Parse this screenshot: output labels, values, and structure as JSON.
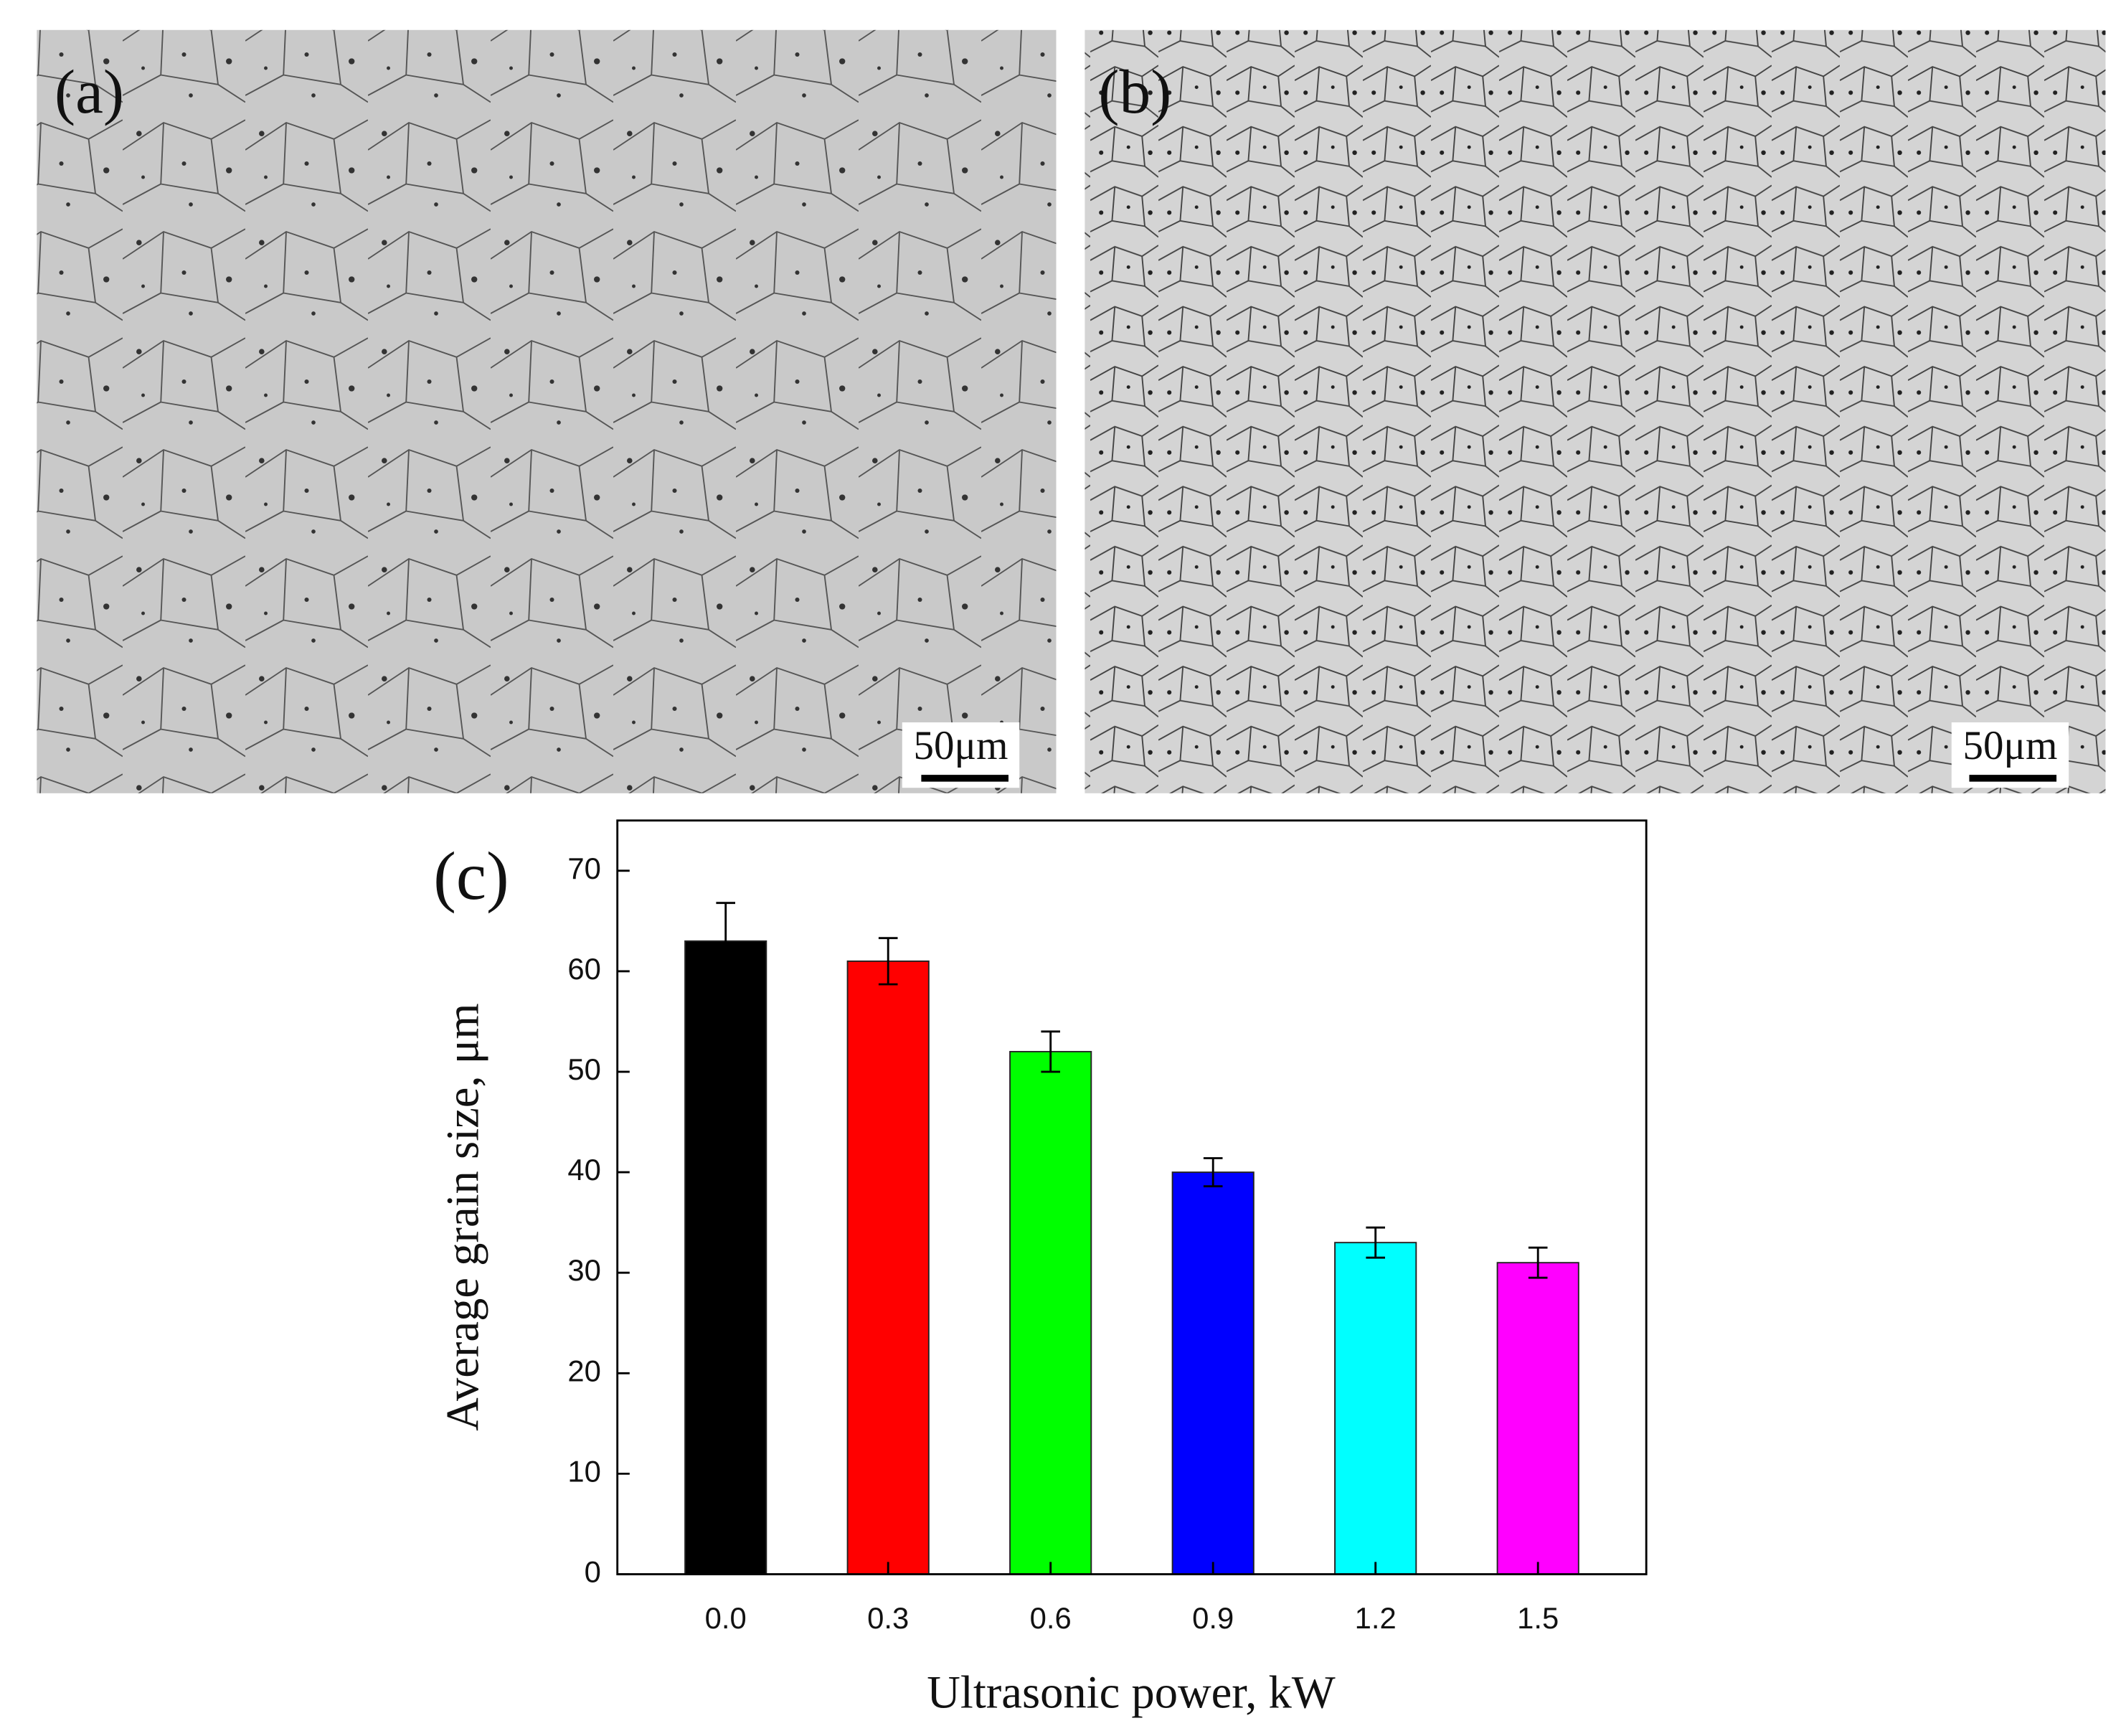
{
  "panels": [
    {
      "label": "(a)",
      "scale_bar": "50μm"
    },
    {
      "label": "(b)",
      "scale_bar": "50μm"
    }
  ],
  "chart_data": {
    "type": "bar",
    "label": "(c)",
    "x": [
      0,
      0.3,
      0.6,
      0.9,
      1.2,
      1.5
    ],
    "values": [
      63,
      61,
      52,
      40,
      33,
      31
    ],
    "errors": [
      3.8,
      2.3,
      2,
      1.4,
      1.5,
      1.5
    ],
    "colors": [
      "#000000",
      "#ff0000",
      "#00ff00",
      "#0000ff",
      "#00ffff",
      "#ff00ff"
    ],
    "xlabel": "Ultrasonic power, kW",
    "ylabel": "Average grain size, μm",
    "xlim": [
      -0.2,
      1.7
    ],
    "ylim": [
      0,
      75
    ],
    "xticks": [
      {
        "value": 0,
        "label": "0.0"
      },
      {
        "value": 0.3,
        "label": "0.3"
      },
      {
        "value": 0.6,
        "label": "0.6"
      },
      {
        "value": 0.9,
        "label": "0.9"
      },
      {
        "value": 1.2,
        "label": "1.2"
      },
      {
        "value": 1.5,
        "label": "1.5"
      }
    ],
    "yticks": [
      0,
      10,
      20,
      30,
      40,
      50,
      60,
      70
    ]
  }
}
